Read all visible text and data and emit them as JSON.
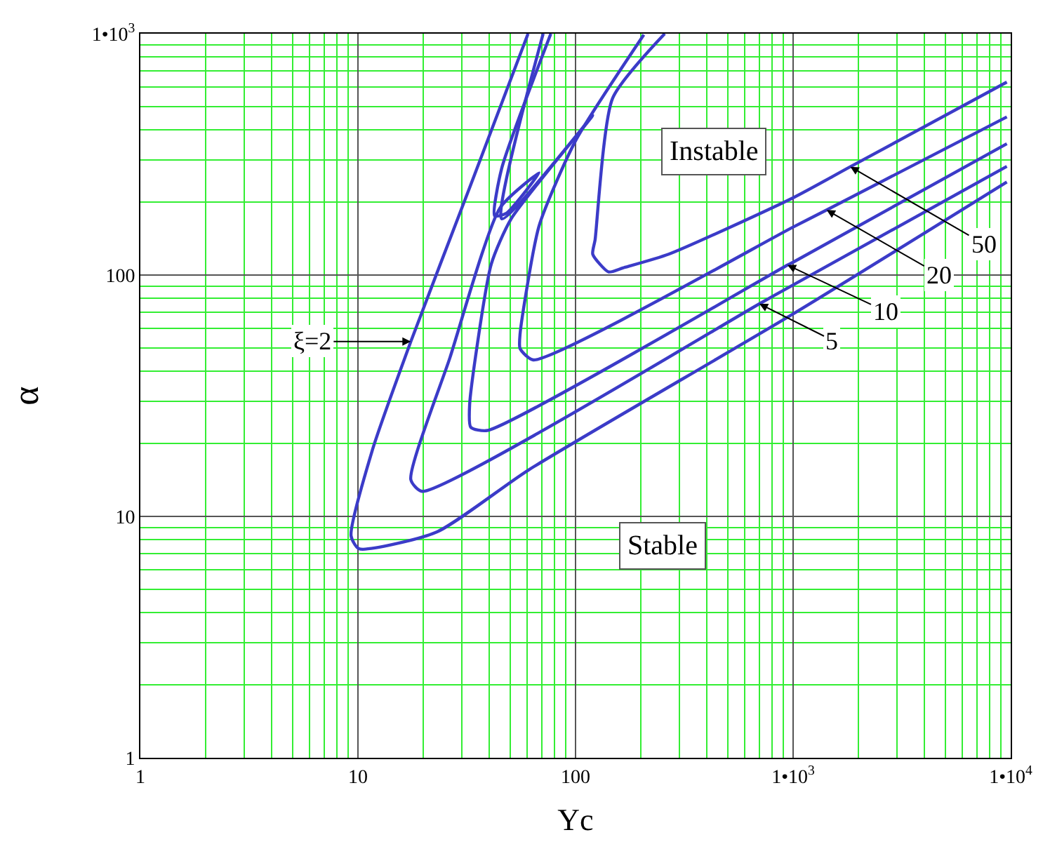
{
  "chart_data": {
    "type": "line",
    "xlabel": "Yc",
    "ylabel": "α",
    "log": "xy",
    "grid": true,
    "marker": "none",
    "line_style": "solid",
    "xlim": [
      1,
      10000
    ],
    "ylim": [
      1,
      1000
    ],
    "xticks": [
      1,
      {
        "value": 2,
        "label": null
      },
      {
        "value": 3,
        "label": null
      },
      {
        "value": 4,
        "label": null
      },
      {
        "value": 5,
        "label": null
      },
      {
        "value": 6,
        "label": null
      },
      {
        "value": 7,
        "label": null
      },
      {
        "value": 8,
        "label": null
      },
      {
        "value": 9,
        "label": null
      },
      10,
      {
        "value": 20,
        "label": null
      },
      {
        "value": 30,
        "label": null
      },
      {
        "value": 40,
        "label": null
      },
      {
        "value": 50,
        "label": null
      },
      {
        "value": 60,
        "label": null
      },
      {
        "value": 70,
        "label": null
      },
      {
        "value": 80,
        "label": null
      },
      {
        "value": 90,
        "label": null
      },
      100,
      {
        "value": 200,
        "label": null
      },
      {
        "value": 300,
        "label": null
      },
      {
        "value": 400,
        "label": null
      },
      {
        "value": 500,
        "label": null
      },
      {
        "value": 600,
        "label": null
      },
      {
        "value": 700,
        "label": null
      },
      {
        "value": 800,
        "label": null
      },
      {
        "value": 900,
        "label": null
      },
      {
        "value": 1000,
        "label": "1•10$^{3}$"
      },
      {
        "value": 2000,
        "label": null
      },
      {
        "value": 3000,
        "label": null
      },
      {
        "value": 4000,
        "label": null
      },
      {
        "value": 5000,
        "label": null
      },
      {
        "value": 6000,
        "label": null
      },
      {
        "value": 7000,
        "label": null
      },
      {
        "value": 8000,
        "label": null
      },
      {
        "value": 9000,
        "label": null
      },
      {
        "value": 10000,
        "label": "1•10$^{4}$"
      }
    ],
    "yticks": [
      1,
      {
        "value": 2,
        "label": null
      },
      {
        "value": 3,
        "label": null
      },
      {
        "value": 4,
        "label": null
      },
      {
        "value": 5,
        "label": null
      },
      {
        "value": 6,
        "label": null
      },
      {
        "value": 7,
        "label": null
      },
      {
        "value": 8,
        "label": null
      },
      {
        "value": 9,
        "label": null
      },
      10,
      {
        "value": 20,
        "label": null
      },
      {
        "value": 30,
        "label": null
      },
      {
        "value": 40,
        "label": null
      },
      {
        "value": 50,
        "label": null
      },
      {
        "value": 60,
        "label": null
      },
      {
        "value": 70,
        "label": null
      },
      {
        "value": 80,
        "label": null
      },
      {
        "value": 90,
        "label": null
      },
      100,
      {
        "value": 200,
        "label": null
      },
      {
        "value": 300,
        "label": null
      },
      {
        "value": 400,
        "label": null
      },
      {
        "value": 500,
        "label": null
      },
      {
        "value": 600,
        "label": null
      },
      {
        "value": 700,
        "label": null
      },
      {
        "value": 800,
        "label": null
      },
      {
        "value": 900,
        "label": null
      },
      {
        "value": 1000,
        "label": "1•10$^{3}$"
      }
    ],
    "series": [
      {
        "color": "#3b3bc8",
        "x": [
          60.5,
          32.6,
          17.5,
          11.6,
          9.3,
          10.1,
          22.9,
          61,
          1000,
          9600
        ],
        "values": [
          1000,
          230,
          53,
          18.6,
          8.3,
          7.35,
          8.6,
          15.6,
          69,
          243
        ]
      },
      {
        "color": "#3b3bc8",
        "x": [
          77,
          45.7,
          42.5,
          48,
          68,
          45,
          26.5,
          17.5,
          19.7,
          700,
          1000,
          9600
        ],
        "values": [
          1000,
          275,
          176,
          180,
          265,
          190,
          45.6,
          14.2,
          12.7,
          76,
          91,
          282
        ]
      },
      {
        "color": "#3b3bc8",
        "x": [
          71,
          45.8,
          120,
          50.6,
          41,
          32.6,
          33,
          39.4,
          942,
          1000,
          9600
        ],
        "values": [
          1000,
          171,
          458,
          171,
          111,
          29,
          23.4,
          22.7,
          110,
          113,
          350
        ]
      },
      {
        "color": "#3b3bc8",
        "x": [
          206,
          100,
          68,
          55.6,
          55.6,
          64,
          1000,
          1426,
          9600
        ],
        "values": [
          990,
          360,
          160,
          57,
          49.6,
          44.5,
          158,
          186,
          452
        ]
      },
      {
        "color": "#3b3bc8",
        "x": [
          257,
          148,
          123,
          120,
          142,
          165,
          268,
          1010,
          1832,
          9600
        ],
        "values": [
          1000,
          540,
          140,
          122,
          103,
          107,
          122,
          210,
          281,
          630
        ]
      }
    ],
    "annotations": [
      {
        "text": "ξ=2",
        "x": 17.5,
        "y": 53
      },
      {
        "text": "5",
        "x": 700,
        "y": 76
      },
      {
        "text": "10",
        "x": 942,
        "y": 110
      },
      {
        "text": "20",
        "x": 1426,
        "y": 186
      },
      {
        "text": "50",
        "x": 1832,
        "y": 281
      },
      "Instable",
      "Stable"
    ]
  }
}
